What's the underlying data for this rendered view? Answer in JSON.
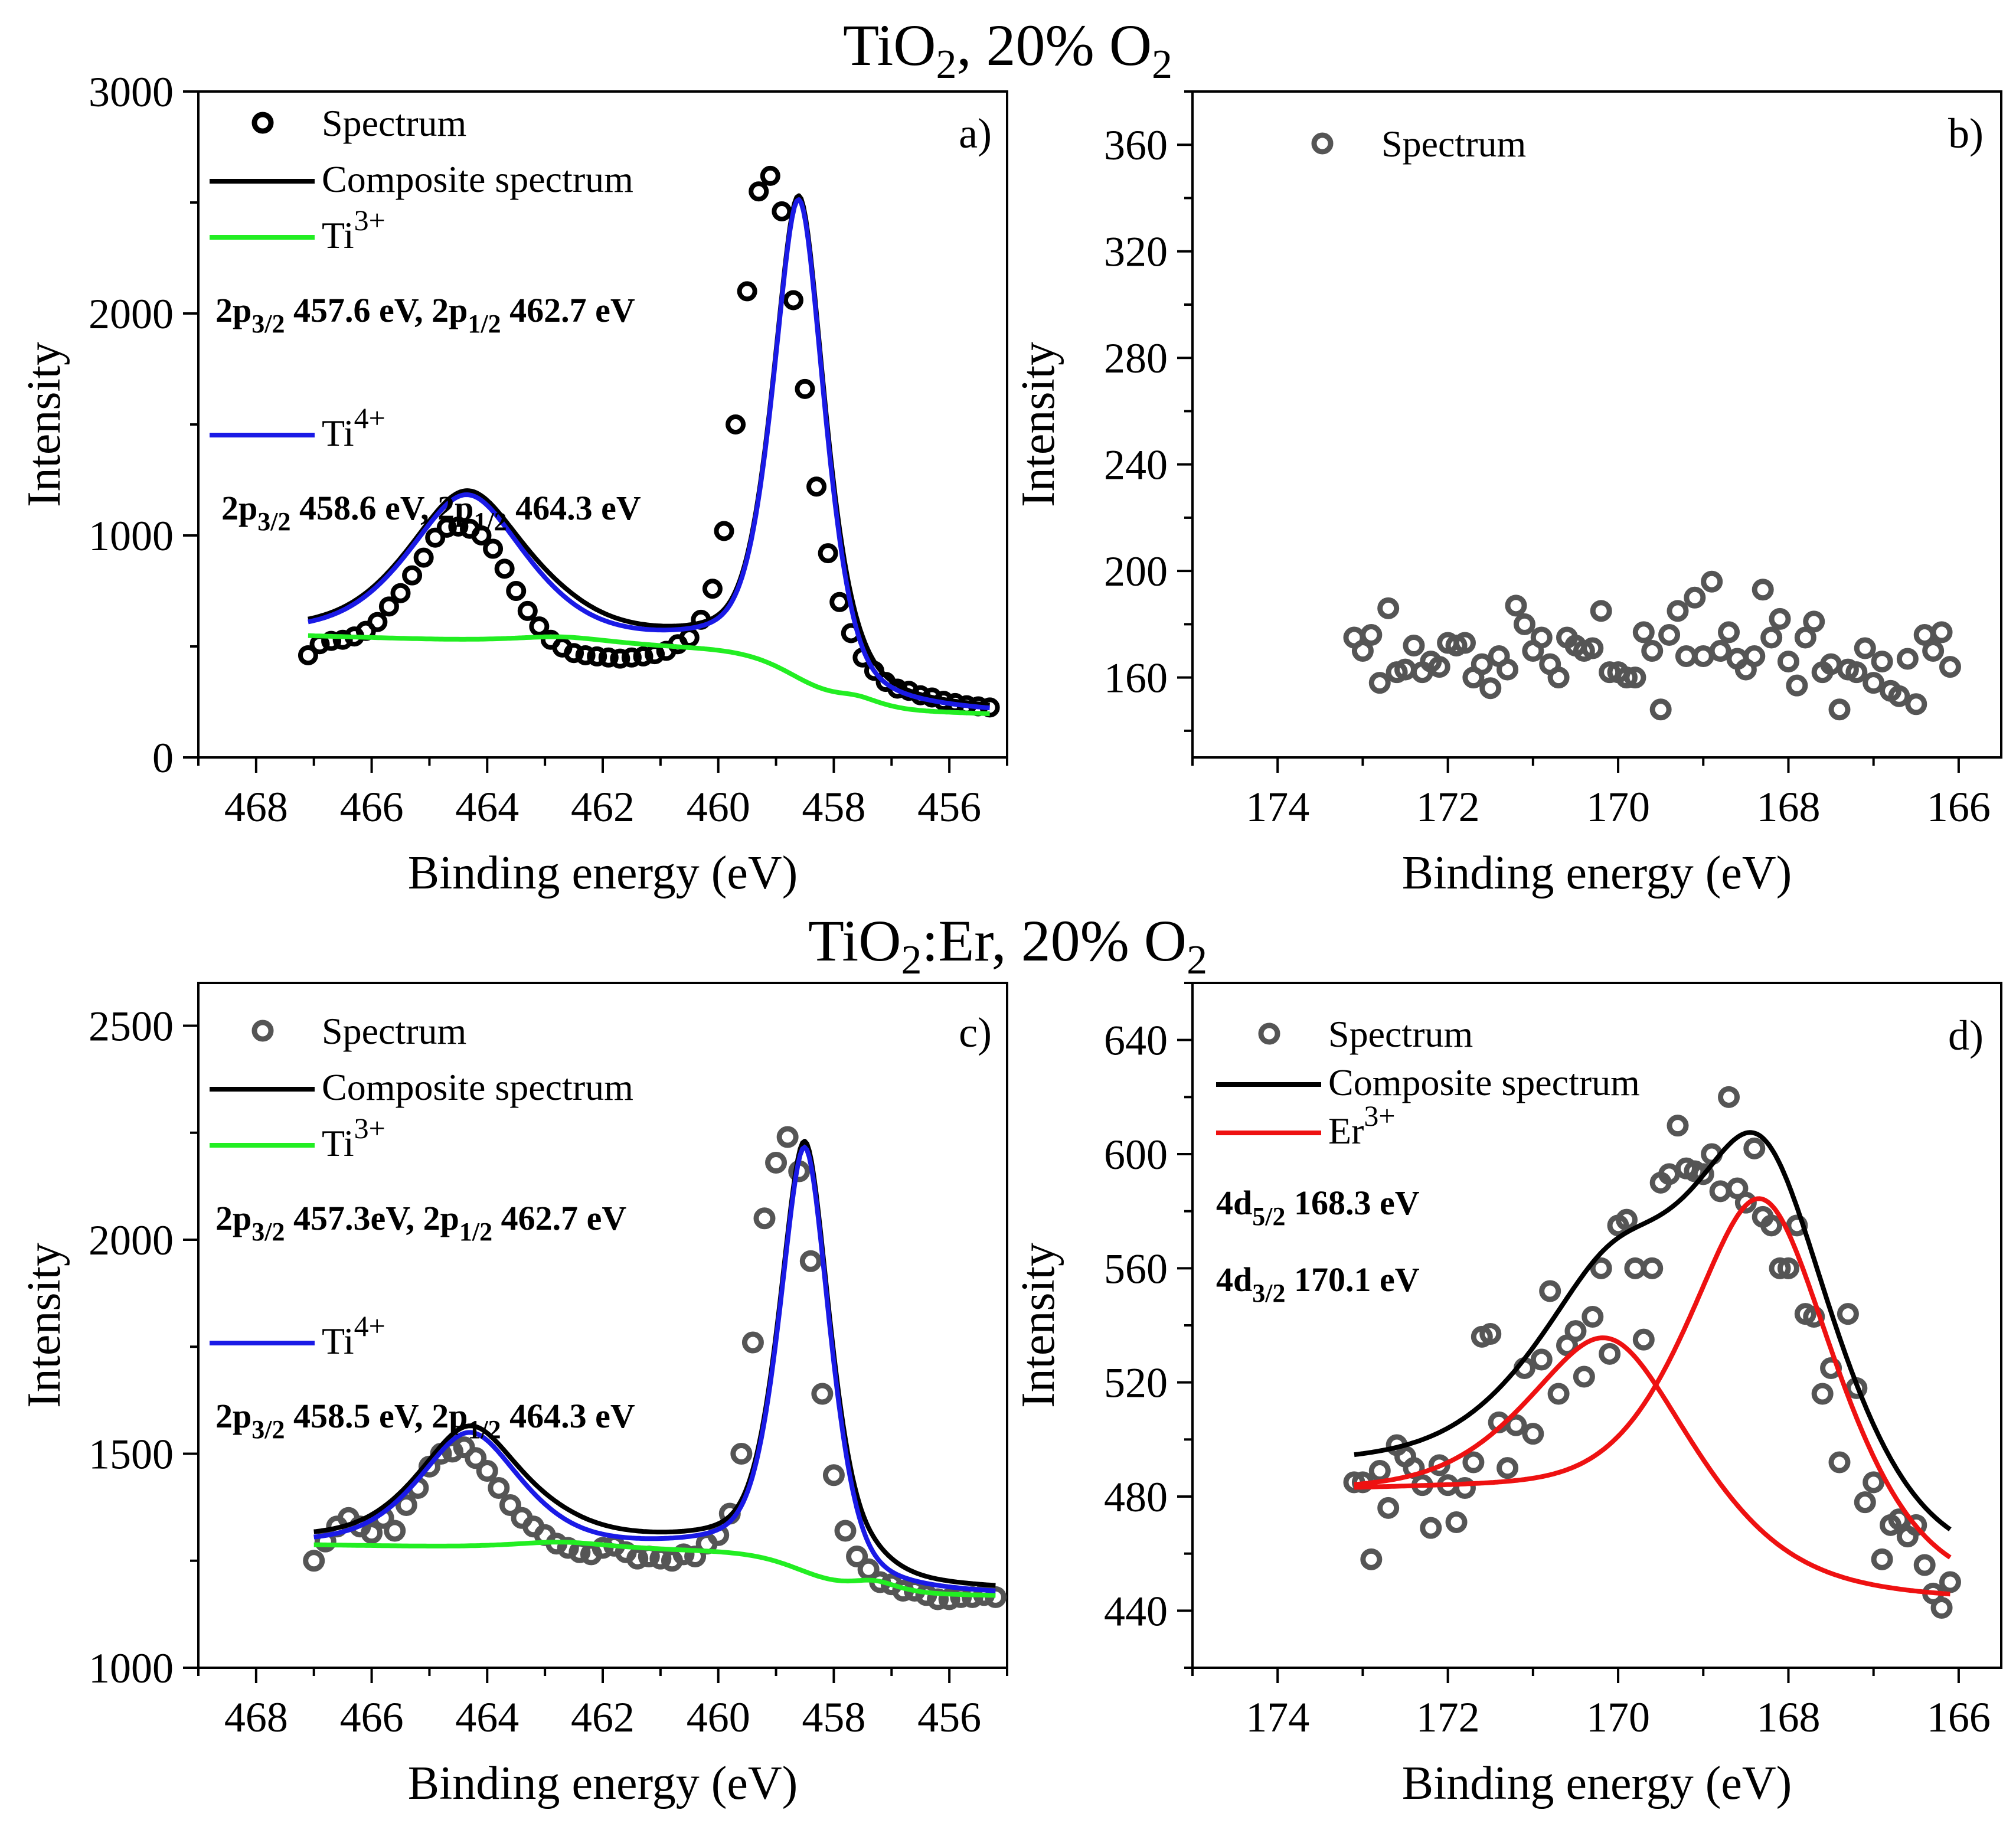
{
  "figure": {
    "title_top_parts": [
      "TiO",
      "2",
      ", 20% O",
      "2"
    ],
    "title_mid_parts": [
      "TiO",
      "2",
      ":Er, 20% O",
      "2"
    ]
  },
  "chart_data": [
    {
      "id": "a",
      "type": "scatter",
      "panel_label": "a)",
      "xlabel": "Binding energy (eV)",
      "ylabel": "Intensity",
      "xlim": [
        469.0,
        455.0
      ],
      "ylim": [
        0,
        3000
      ],
      "x_ticks": [
        468,
        466,
        464,
        462,
        460,
        458,
        456
      ],
      "y_ticks": [
        0,
        1000,
        2000,
        3000
      ],
      "grid": false,
      "legend_position": "top-left",
      "legend": [
        {
          "name": "Spectrum",
          "type": "marker",
          "color": "#000000"
        },
        {
          "name": "Composite spectrum",
          "type": "line",
          "color": "#000000"
        },
        {
          "name": "Ti",
          "sup": "3+",
          "type": "line",
          "color": "#22ee22"
        },
        {
          "name": "Ti",
          "sup": "4+",
          "type": "line",
          "color": "#1a1ae6"
        }
      ],
      "annotations": [
        {
          "parts": [
            [
              "2p",
              "3/2"
            ],
            [
              " 457.6 eV, 2p",
              "1/2"
            ],
            [
              " 462.7 eV",
              ""
            ]
          ]
        },
        {
          "parts": [
            [
              "2p",
              "3/2"
            ],
            [
              " 458.6 eV, 2p",
              "1/2"
            ],
            [
              " 464.3 eV",
              ""
            ]
          ]
        }
      ],
      "marker_color": "#000000",
      "peaks": {
        "ti4_main": [
          458.6,
          2150,
          0.48
        ],
        "ti4_sat": [
          464.35,
          650,
          1.1
        ],
        "ti3_main": [
          457.6,
          40,
          0.45
        ],
        "ti3_sat": [
          462.7,
          30,
          0.9
        ]
      },
      "background": {
        "high": 480,
        "low": 222,
        "step_center": 458.6,
        "step_width": 0.45,
        "slope": 8
      },
      "spectrum": {
        "x": [
          467.1,
          466.9,
          466.7,
          466.5,
          466.3,
          466.1,
          465.9,
          465.7,
          465.5,
          465.3,
          465.1,
          464.9,
          464.7,
          464.5,
          464.3,
          464.1,
          463.9,
          463.7,
          463.5,
          463.3,
          463.1,
          462.9,
          462.7,
          462.5,
          462.3,
          462.1,
          461.9,
          461.7,
          461.5,
          461.3,
          461.1,
          460.9,
          460.7,
          460.5,
          460.3,
          460.1,
          459.9,
          459.7,
          459.5,
          459.3,
          459.1,
          458.9,
          458.7,
          458.5,
          458.3,
          458.1,
          457.9,
          457.7,
          457.5,
          457.3,
          457.1,
          456.9,
          456.7,
          456.5,
          456.3,
          456.1,
          455.9,
          455.7,
          455.5,
          455.3
        ],
        "y": [
          460,
          510,
          525,
          530,
          545,
          570,
          610,
          680,
          740,
          820,
          900,
          990,
          1035,
          1040,
          1030,
          1000,
          940,
          850,
          750,
          660,
          590,
          530,
          495,
          470,
          460,
          455,
          450,
          445,
          450,
          455,
          465,
          480,
          510,
          540,
          620,
          760,
          1020,
          1500,
          2100,
          2550,
          2620,
          2460,
          2060,
          1660,
          1220,
          920,
          700,
          560,
          450,
          390,
          340,
          310,
          300,
          280,
          270,
          255,
          245,
          235,
          230,
          225
        ]
      }
    },
    {
      "id": "b",
      "type": "scatter",
      "panel_label": "b)",
      "xlabel": "Binding energy (eV)",
      "ylabel": "Intensity",
      "xlim": [
        175.0,
        165.5
      ],
      "ylim": [
        130,
        380
      ],
      "x_ticks": [
        174,
        172,
        170,
        168,
        166
      ],
      "y_ticks": [
        160,
        200,
        240,
        280,
        320,
        360
      ],
      "grid": false,
      "legend_position": "top-left",
      "legend": [
        {
          "name": "Spectrum",
          "type": "marker",
          "color": "#555555"
        }
      ],
      "annotations": [],
      "marker_color": "#555555",
      "spectrum": {
        "x": [
          173.1,
          173.0,
          172.9,
          172.8,
          172.7,
          172.6,
          172.5,
          172.4,
          172.3,
          172.2,
          172.1,
          172.0,
          171.9,
          171.8,
          171.7,
          171.6,
          171.5,
          171.4,
          171.3,
          171.2,
          171.1,
          171.0,
          170.9,
          170.8,
          170.7,
          170.6,
          170.5,
          170.4,
          170.3,
          170.2,
          170.1,
          170.0,
          169.9,
          169.8,
          169.7,
          169.6,
          169.5,
          169.4,
          169.3,
          169.2,
          169.1,
          169.0,
          168.9,
          168.8,
          168.7,
          168.6,
          168.5,
          168.4,
          168.3,
          168.2,
          168.1,
          168.0,
          167.9,
          167.8,
          167.7,
          167.6,
          167.5,
          167.4,
          167.3,
          167.2,
          167.1,
          167.0,
          166.9,
          166.8,
          166.7,
          166.6,
          166.5,
          166.4,
          166.3,
          166.2,
          166.1
        ],
        "y": [
          175,
          170,
          176,
          158,
          186,
          162,
          163,
          172,
          162,
          166,
          164,
          173,
          172,
          173,
          160,
          165,
          156,
          168,
          163,
          187,
          180,
          170,
          175,
          165,
          160,
          175,
          172,
          170,
          171,
          185,
          162,
          162,
          160,
          160,
          177,
          170,
          148,
          176,
          185,
          168,
          190,
          168,
          196,
          170,
          177,
          167,
          163,
          168,
          193,
          175,
          182,
          166,
          157,
          175,
          181,
          162,
          165,
          148,
          163,
          162,
          171,
          158,
          166,
          155,
          153,
          167,
          150,
          176,
          170,
          177,
          164
        ]
      }
    },
    {
      "id": "c",
      "type": "scatter",
      "panel_label": "c)",
      "xlabel": "Binding energy (eV)",
      "ylabel": "Intensity",
      "xlim": [
        469.0,
        455.0
      ],
      "ylim": [
        1000,
        2600
      ],
      "x_ticks": [
        468,
        466,
        464,
        462,
        460,
        458,
        456
      ],
      "y_ticks": [
        1000,
        1500,
        2000,
        2500
      ],
      "grid": false,
      "legend_position": "top-left",
      "legend": [
        {
          "name": "Spectrum",
          "type": "marker",
          "color": "#555555"
        },
        {
          "name": "Composite spectrum",
          "type": "line",
          "color": "#000000"
        },
        {
          "name": "Ti",
          "sup": "3+",
          "type": "line",
          "color": "#22ee22"
        },
        {
          "name": "Ti",
          "sup": "4+",
          "type": "line",
          "color": "#1a1ae6"
        }
      ],
      "annotations": [
        {
          "parts": [
            [
              "2p",
              "3/2"
            ],
            [
              " 457.3eV, 2p",
              "1/2"
            ],
            [
              " 462.7 eV",
              ""
            ]
          ]
        },
        {
          "parts": [
            [
              "2p",
              "3/2"
            ],
            [
              " 458.5 eV, 2p",
              "1/2"
            ],
            [
              " 464.3 eV",
              ""
            ]
          ]
        }
      ],
      "marker_color": "#555555",
      "peaks": {
        "ti4_main": [
          458.5,
          990,
          0.47
        ],
        "ti4_sat": [
          464.3,
          265,
          0.95
        ],
        "ti3_main": [
          457.3,
          25,
          0.45
        ],
        "ti3_sat": [
          462.7,
          15,
          0.9
        ]
      },
      "background": {
        "high": 1270,
        "low": 1175,
        "step_center": 458.5,
        "step_width": 0.45,
        "slope": 2
      },
      "spectrum": {
        "x": [
          467.0,
          466.8,
          466.6,
          466.4,
          466.2,
          466.0,
          465.8,
          465.6,
          465.4,
          465.2,
          465.0,
          464.8,
          464.6,
          464.4,
          464.2,
          464.0,
          463.8,
          463.6,
          463.4,
          463.2,
          463.0,
          462.8,
          462.6,
          462.4,
          462.2,
          462.0,
          461.8,
          461.6,
          461.4,
          461.2,
          461.0,
          460.8,
          460.6,
          460.4,
          460.2,
          460.0,
          459.8,
          459.6,
          459.4,
          459.2,
          459.0,
          458.8,
          458.6,
          458.4,
          458.2,
          458.0,
          457.8,
          457.6,
          457.4,
          457.2,
          457.0,
          456.8,
          456.6,
          456.4,
          456.2,
          456.0,
          455.8,
          455.6,
          455.4,
          455.2
        ],
        "y": [
          1250,
          1295,
          1330,
          1350,
          1330,
          1315,
          1350,
          1320,
          1380,
          1420,
          1470,
          1500,
          1505,
          1515,
          1490,
          1460,
          1420,
          1380,
          1350,
          1330,
          1310,
          1290,
          1280,
          1270,
          1265,
          1280,
          1285,
          1270,
          1255,
          1260,
          1255,
          1250,
          1265,
          1260,
          1290,
          1310,
          1360,
          1500,
          1760,
          2050,
          2180,
          2240,
          2160,
          1950,
          1640,
          1450,
          1320,
          1260,
          1230,
          1200,
          1195,
          1180,
          1180,
          1170,
          1160,
          1160,
          1165,
          1165,
          1170,
          1165
        ]
      }
    },
    {
      "id": "d",
      "type": "scatter",
      "panel_label": "d)",
      "xlabel": "Binding energy (eV)",
      "ylabel": "Intensity",
      "xlim": [
        175.0,
        165.5
      ],
      "ylim": [
        420,
        660
      ],
      "x_ticks": [
        174,
        172,
        170,
        168,
        166
      ],
      "y_ticks": [
        440,
        480,
        520,
        560,
        600,
        640
      ],
      "grid": false,
      "legend_position": "top-left",
      "legend": [
        {
          "name": "Spectrum",
          "type": "marker",
          "color": "#555555"
        },
        {
          "name": "Composite spectrum",
          "type": "line",
          "color": "#000000"
        },
        {
          "name": "Er",
          "sup": "3+",
          "type": "line",
          "color": "#ee1111"
        }
      ],
      "annotations": [
        {
          "parts": [
            [
              "4d",
              "5/2"
            ],
            [
              " 168.3 eV",
              ""
            ]
          ]
        },
        {
          "parts": [
            [
              "4d",
              "3/2"
            ],
            [
              " 170.1 eV",
              ""
            ]
          ]
        }
      ],
      "marker_color": "#555555",
      "peaks": {
        "er_52": [
          168.3,
          130,
          0.95
        ],
        "er_32": [
          170.1,
          62,
          1.0
        ]
      },
      "background": {
        "high": 481,
        "low": 443,
        "step_center": 169.0,
        "step_width": 0.8,
        "slope": 0
      },
      "spectrum": {
        "x": [
          173.1,
          173.0,
          172.9,
          172.8,
          172.7,
          172.6,
          172.5,
          172.4,
          172.3,
          172.2,
          172.1,
          172.0,
          171.9,
          171.8,
          171.7,
          171.6,
          171.5,
          171.4,
          171.3,
          171.2,
          171.1,
          171.0,
          170.9,
          170.8,
          170.7,
          170.6,
          170.5,
          170.4,
          170.3,
          170.2,
          170.1,
          170.0,
          169.9,
          169.8,
          169.7,
          169.6,
          169.5,
          169.4,
          169.3,
          169.2,
          169.1,
          169.0,
          168.9,
          168.8,
          168.7,
          168.6,
          168.5,
          168.4,
          168.3,
          168.2,
          168.1,
          168.0,
          167.9,
          167.8,
          167.7,
          167.6,
          167.5,
          167.4,
          167.3,
          167.2,
          167.1,
          167.0,
          166.9,
          166.8,
          166.7,
          166.6,
          166.5,
          166.4,
          166.3,
          166.2,
          166.1
        ],
        "y": [
          485,
          485,
          458,
          489,
          476,
          498,
          494,
          490,
          484,
          469,
          491,
          484,
          471,
          483,
          492,
          536,
          537,
          506,
          490,
          505,
          525,
          502,
          528,
          552,
          516,
          533,
          538,
          522,
          543,
          560,
          530,
          575,
          577,
          560,
          535,
          560,
          590,
          593,
          610,
          595,
          594,
          593,
          600,
          587,
          620,
          588,
          583,
          602,
          578,
          575,
          560,
          560,
          575,
          544,
          543,
          516,
          525,
          492,
          544,
          518,
          478,
          485,
          458,
          470,
          472,
          466,
          470,
          456,
          446,
          441,
          450
        ]
      }
    }
  ]
}
